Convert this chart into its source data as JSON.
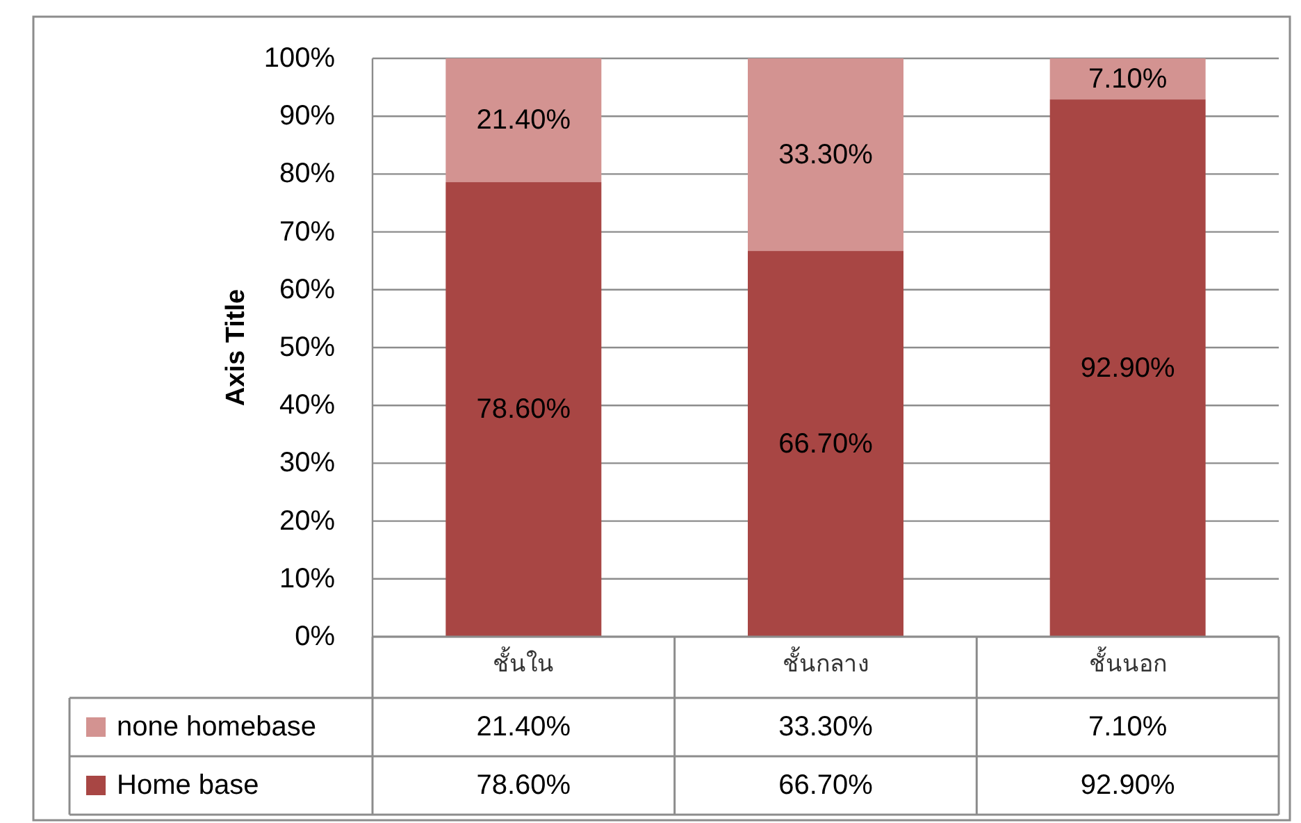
{
  "chart_data": {
    "type": "bar",
    "stacked": true,
    "ylabel": "Axis Title",
    "categories": [
      "ชั้นใน",
      "ชั้นกลาง",
      "ชั้นนอก"
    ],
    "series": [
      {
        "name": "Home base",
        "color": "#a84644",
        "values": [
          78.6,
          66.7,
          92.9
        ],
        "value_labels": [
          "78.60%",
          "66.70%",
          "92.90%"
        ]
      },
      {
        "name": "none homebase",
        "color": "#d39391",
        "values": [
          21.4,
          33.3,
          7.1
        ],
        "value_labels": [
          "21.40%",
          "33.30%",
          "7.10%"
        ]
      }
    ],
    "ylim": [
      0,
      100
    ],
    "yticks": [
      {
        "value": 0,
        "label": "0%"
      },
      {
        "value": 10,
        "label": "10%"
      },
      {
        "value": 20,
        "label": "20%"
      },
      {
        "value": 30,
        "label": "30%"
      },
      {
        "value": 40,
        "label": "40%"
      },
      {
        "value": 50,
        "label": "50%"
      },
      {
        "value": 60,
        "label": "60%"
      },
      {
        "value": 70,
        "label": "70%"
      },
      {
        "value": 80,
        "label": "80%"
      },
      {
        "value": 90,
        "label": "90%"
      },
      {
        "value": 100,
        "label": "100%"
      }
    ],
    "grid": "y",
    "legend": "bottom"
  }
}
